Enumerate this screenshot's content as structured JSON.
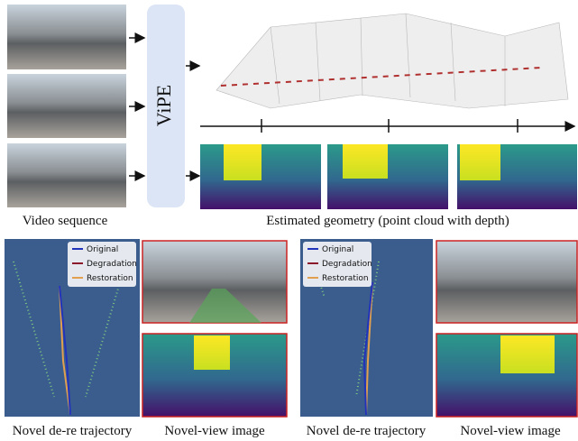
{
  "top": {
    "method_label": "ViPE",
    "input_caption": "Video sequence",
    "output_caption": "Estimated geometry (point cloud with depth)"
  },
  "panels": [
    {
      "legend": [
        "Original",
        "Degradation",
        "Restoration"
      ],
      "trajectory_caption": "Novel de-re trajectory",
      "view_caption": "Novel-view image"
    },
    {
      "legend": [
        "Original",
        "Degradation",
        "Restoration"
      ],
      "trajectory_caption": "Novel de-re trajectory",
      "view_caption": "Novel-view image"
    }
  ]
}
